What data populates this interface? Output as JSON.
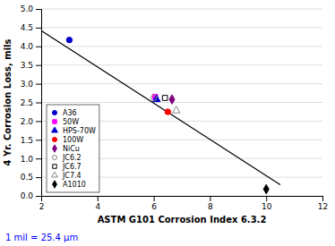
{
  "chart_data": {
    "type": "scatter",
    "xlabel": "ASTM G101 Corrosion Index 6.3.2",
    "ylabel": "4 Yr. Corrosion Loss, mils",
    "xlim": [
      2,
      12
    ],
    "xticks": [
      2,
      4,
      6,
      8,
      10,
      12
    ],
    "ylim": [
      0.0,
      5.0
    ],
    "yticks": [
      {
        "value": 0.0,
        "label": "0.0"
      },
      0.5,
      {
        "value": 1.0,
        "label": "1.0"
      },
      1.5,
      {
        "value": 2.0,
        "label": "2.0"
      },
      2.5,
      {
        "value": 3.0,
        "label": "3.0"
      },
      3.5,
      {
        "value": 4.0,
        "label": "4.0"
      },
      4.5,
      {
        "value": 5.0,
        "label": "5.0"
      }
    ],
    "grid": "y",
    "legend": "lower left",
    "annotations": [
      {
        "text": "1 mil = 25.4 μm",
        "color": "#0000FF"
      }
    ],
    "series": [
      {
        "type": "line",
        "color": "#000000",
        "x": [
          2.0,
          10.5
        ],
        "values": [
          4.42,
          0.3
        ]
      },
      {
        "type": "scatter",
        "name": "A36",
        "color": "#0000CC",
        "marker": "circle",
        "x": [
          3.0
        ],
        "values": [
          4.17
        ]
      },
      {
        "type": "scatter",
        "name": "50W",
        "color": "#FF00FF",
        "marker": "square",
        "x": [
          6.05
        ],
        "values": [
          2.65
        ]
      },
      {
        "type": "scatter",
        "name": "HPS-70W",
        "color": "#0000CC",
        "marker": "triangle",
        "x": [
          6.1
        ],
        "values": [
          2.58
        ]
      },
      {
        "type": "scatter",
        "name": "100W",
        "color": "#FF0000",
        "marker": "circle",
        "x": [
          6.5
        ],
        "values": [
          2.25
        ]
      },
      {
        "type": "scatter",
        "name": "NiCu",
        "color": "#800080",
        "marker": "diamond",
        "x": [
          6.65
        ],
        "values": [
          2.58
        ]
      },
      {
        "type": "scatter",
        "name": "JC6.2",
        "color": "#888888",
        "marker": "circle-open",
        "x": [
          6.0
        ],
        "values": [
          2.62
        ]
      },
      {
        "type": "scatter",
        "name": "JC6.7",
        "color": "#000000",
        "marker": "square-open",
        "x": [
          6.4
        ],
        "values": [
          2.62
        ]
      },
      {
        "type": "scatter",
        "name": "JC7.4",
        "color": "#888888",
        "marker": "triangle-open",
        "x": [
          6.8
        ],
        "values": [
          2.28
        ]
      },
      {
        "type": "scatter",
        "name": "A1010",
        "color": "#000000",
        "marker": "diamond",
        "x": [
          10.0
        ],
        "values": [
          0.18
        ]
      }
    ]
  }
}
